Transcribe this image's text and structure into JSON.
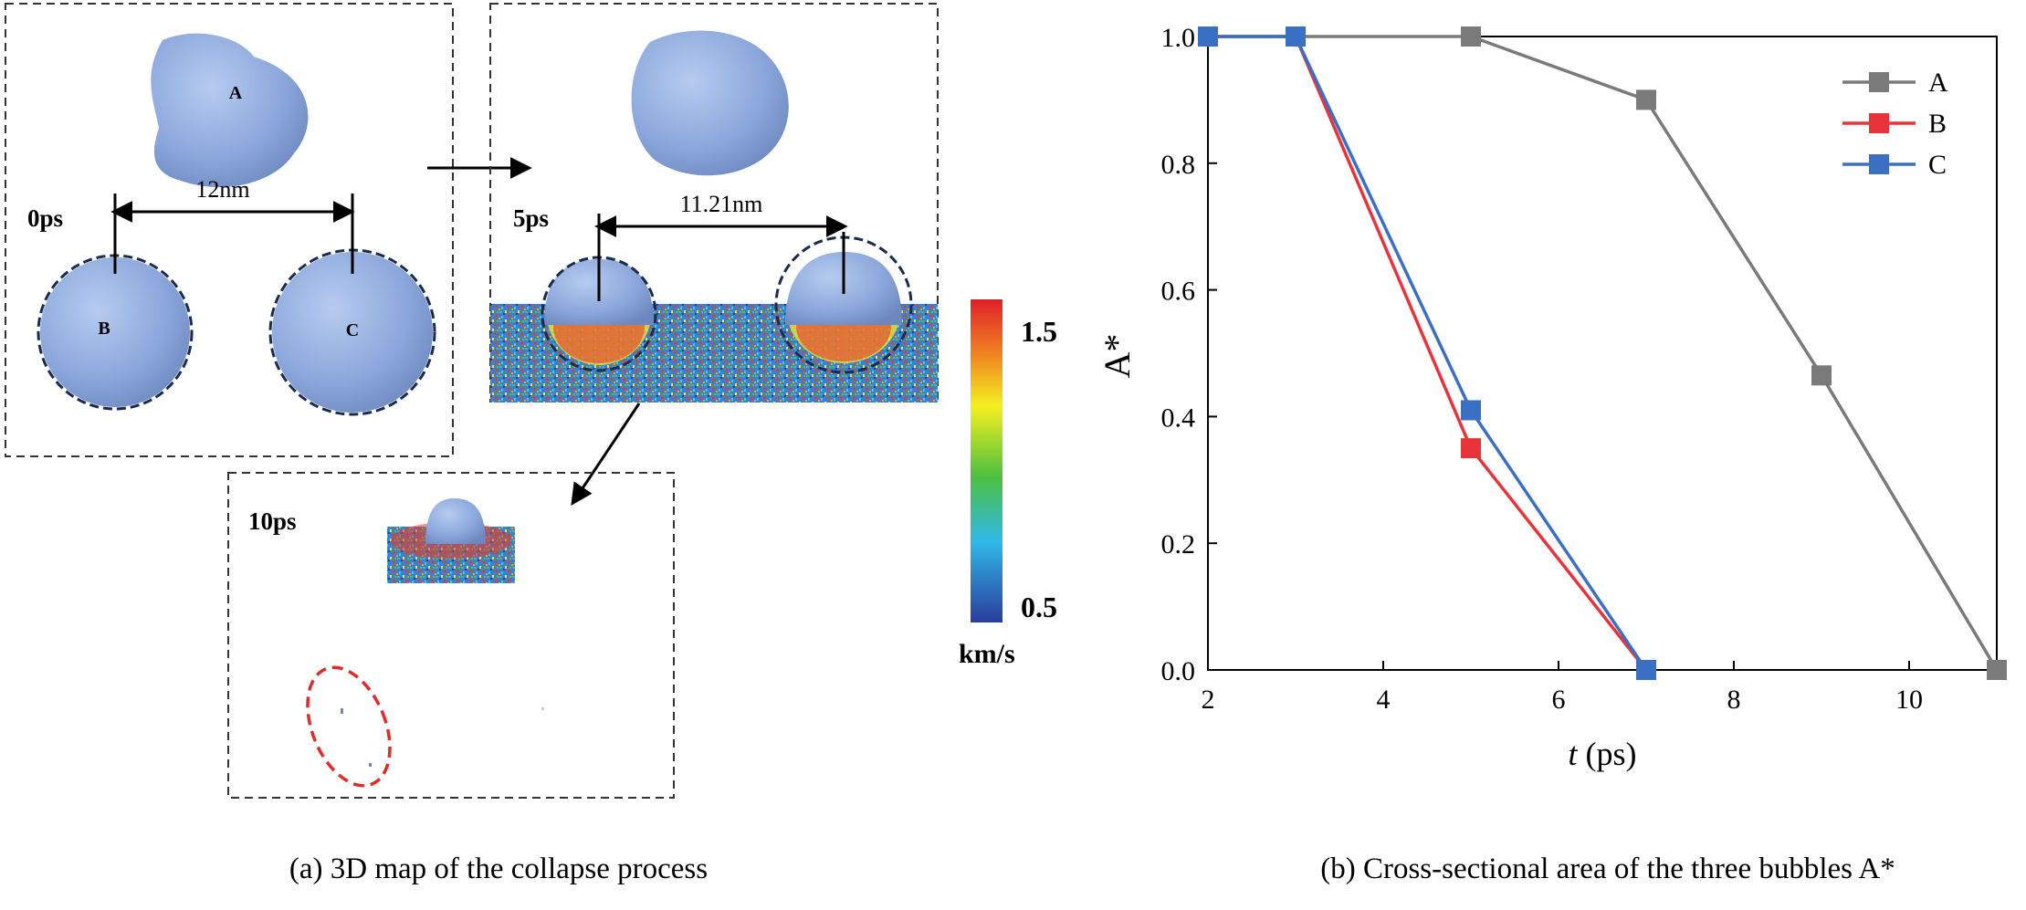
{
  "panel_a": {
    "caption": "(a) 3D map of the collapse process",
    "frames": [
      {
        "time_label": "0ps",
        "distance_label": "12nm",
        "bubble_labels": [
          "A",
          "B",
          "C"
        ]
      },
      {
        "time_label": "5ps",
        "distance_label": "11.21nm"
      },
      {
        "time_label": "10ps"
      }
    ],
    "colorbar": {
      "max_label": "1.5",
      "min_label": "0.5",
      "unit": "km/s"
    }
  },
  "panel_b": {
    "caption": "(b) Cross-sectional area of the three bubbles A*"
  },
  "chart_data": {
    "type": "line",
    "xlabel_italic": "t",
    "xlabel_rest": " (ps)",
    "ylabel": "A*",
    "xlim": [
      2,
      11
    ],
    "ylim": [
      0,
      1
    ],
    "x_ticks": [
      2,
      4,
      6,
      8,
      10
    ],
    "y_ticks": [
      0.0,
      0.2,
      0.4,
      0.6,
      0.8,
      1.0
    ],
    "grid": false,
    "legend_position": "top-right",
    "series": [
      {
        "name": "A",
        "color": "#7a7a7a",
        "x": [
          2,
          3,
          5,
          7,
          9,
          11
        ],
        "y": [
          1.0,
          1.0,
          1.0,
          0.9,
          0.465,
          0.0
        ]
      },
      {
        "name": "B",
        "color": "#e8333a",
        "x": [
          2,
          3,
          5,
          7
        ],
        "y": [
          1.0,
          1.0,
          0.35,
          0.0
        ]
      },
      {
        "name": "C",
        "color": "#3b6fc4",
        "x": [
          2,
          3,
          5,
          7
        ],
        "y": [
          1.0,
          1.0,
          0.41,
          0.0
        ]
      }
    ]
  }
}
